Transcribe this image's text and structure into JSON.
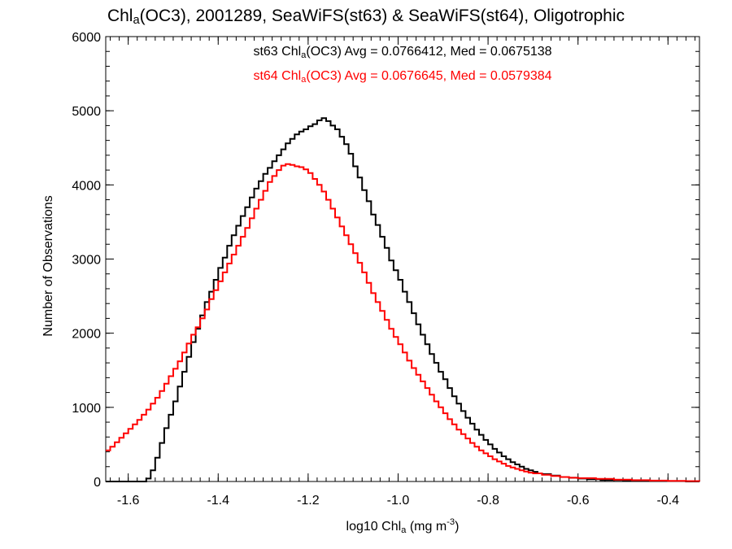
{
  "chart_data": {
    "type": "line",
    "title_parts": [
      "Chl",
      "a",
      "(OC3), 2001289, SeaWiFS(st63) & SeaWiFS(st64), Oligotrophic"
    ],
    "annotations": [
      {
        "series": "st63",
        "color": "#000000",
        "parts": [
          "st63 Chl",
          "a",
          "(OC3) Avg = 0.0766412, Med = 0.0675138"
        ]
      },
      {
        "series": "st64",
        "color": "#ff0000",
        "parts": [
          "st64 Chl",
          "a",
          "(OC3) Avg = 0.0676645, Med = 0.0579384"
        ]
      }
    ],
    "xlabel_parts": [
      "log10 Chl",
      "a",
      " (mg m",
      "-3",
      ")"
    ],
    "ylabel": "Number of Observations",
    "xlim": [
      -1.65,
      -0.33
    ],
    "ylim": [
      0,
      6000
    ],
    "xticks": [
      -1.6,
      -1.4,
      -1.2,
      -1.0,
      -0.8,
      -0.6,
      -0.4
    ],
    "xtick_labels": [
      "-1.6",
      "-1.4",
      "-1.2",
      "-1.0",
      "-0.8",
      "-0.6",
      "-0.4"
    ],
    "yticks": [
      0,
      1000,
      2000,
      3000,
      4000,
      5000,
      6000
    ],
    "ytick_labels": [
      "0",
      "1000",
      "2000",
      "3000",
      "4000",
      "5000",
      "6000"
    ],
    "step_style": "histogram",
    "series": [
      {
        "name": "st63",
        "color": "#000000",
        "points": [
          [
            -1.65,
            0
          ],
          [
            -1.58,
            0
          ],
          [
            -1.56,
            40
          ],
          [
            -1.55,
            150
          ],
          [
            -1.54,
            320
          ],
          [
            -1.53,
            520
          ],
          [
            -1.52,
            720
          ],
          [
            -1.51,
            900
          ],
          [
            -1.5,
            1080
          ],
          [
            -1.49,
            1280
          ],
          [
            -1.48,
            1480
          ],
          [
            -1.47,
            1680
          ],
          [
            -1.46,
            1880
          ],
          [
            -1.45,
            2060
          ],
          [
            -1.44,
            2240
          ],
          [
            -1.43,
            2420
          ],
          [
            -1.42,
            2560
          ],
          [
            -1.41,
            2720
          ],
          [
            -1.4,
            2880
          ],
          [
            -1.39,
            3020
          ],
          [
            -1.38,
            3180
          ],
          [
            -1.37,
            3320
          ],
          [
            -1.36,
            3450
          ],
          [
            -1.35,
            3580
          ],
          [
            -1.34,
            3700
          ],
          [
            -1.33,
            3830
          ],
          [
            -1.32,
            3950
          ],
          [
            -1.31,
            4050
          ],
          [
            -1.3,
            4150
          ],
          [
            -1.29,
            4230
          ],
          [
            -1.28,
            4320
          ],
          [
            -1.27,
            4400
          ],
          [
            -1.26,
            4480
          ],
          [
            -1.25,
            4560
          ],
          [
            -1.24,
            4620
          ],
          [
            -1.23,
            4680
          ],
          [
            -1.22,
            4720
          ],
          [
            -1.21,
            4750
          ],
          [
            -1.2,
            4790
          ],
          [
            -1.19,
            4820
          ],
          [
            -1.18,
            4870
          ],
          [
            -1.17,
            4900
          ],
          [
            -1.16,
            4860
          ],
          [
            -1.15,
            4800
          ],
          [
            -1.14,
            4750
          ],
          [
            -1.13,
            4650
          ],
          [
            -1.12,
            4550
          ],
          [
            -1.11,
            4420
          ],
          [
            -1.1,
            4250
          ],
          [
            -1.09,
            4100
          ],
          [
            -1.08,
            3930
          ],
          [
            -1.07,
            3780
          ],
          [
            -1.06,
            3600
          ],
          [
            -1.05,
            3460
          ],
          [
            -1.04,
            3300
          ],
          [
            -1.03,
            3150
          ],
          [
            -1.02,
            2980
          ],
          [
            -1.01,
            2850
          ],
          [
            -1.0,
            2720
          ],
          [
            -0.99,
            2560
          ],
          [
            -0.98,
            2420
          ],
          [
            -0.97,
            2270
          ],
          [
            -0.96,
            2120
          ],
          [
            -0.95,
            1980
          ],
          [
            -0.94,
            1850
          ],
          [
            -0.93,
            1720
          ],
          [
            -0.92,
            1600
          ],
          [
            -0.91,
            1480
          ],
          [
            -0.9,
            1380
          ],
          [
            -0.89,
            1260
          ],
          [
            -0.88,
            1150
          ],
          [
            -0.87,
            1050
          ],
          [
            -0.86,
            950
          ],
          [
            -0.85,
            860
          ],
          [
            -0.84,
            780
          ],
          [
            -0.83,
            700
          ],
          [
            -0.82,
            630
          ],
          [
            -0.81,
            560
          ],
          [
            -0.8,
            500
          ],
          [
            -0.79,
            440
          ],
          [
            -0.78,
            390
          ],
          [
            -0.77,
            340
          ],
          [
            -0.76,
            300
          ],
          [
            -0.75,
            260
          ],
          [
            -0.74,
            230
          ],
          [
            -0.73,
            200
          ],
          [
            -0.72,
            170
          ],
          [
            -0.71,
            150
          ],
          [
            -0.7,
            130
          ],
          [
            -0.69,
            110
          ],
          [
            -0.68,
            100
          ],
          [
            -0.66,
            80
          ],
          [
            -0.64,
            60
          ],
          [
            -0.62,
            50
          ],
          [
            -0.6,
            40
          ],
          [
            -0.58,
            30
          ],
          [
            -0.55,
            20
          ],
          [
            -0.5,
            15
          ],
          [
            -0.45,
            10
          ],
          [
            -0.4,
            5
          ],
          [
            -0.36,
            0
          ],
          [
            -0.33,
            0
          ]
        ]
      },
      {
        "name": "st64",
        "color": "#ff0000",
        "points": [
          [
            -1.65,
            420
          ],
          [
            -1.64,
            470
          ],
          [
            -1.63,
            530
          ],
          [
            -1.62,
            590
          ],
          [
            -1.61,
            650
          ],
          [
            -1.6,
            710
          ],
          [
            -1.59,
            770
          ],
          [
            -1.58,
            830
          ],
          [
            -1.57,
            900
          ],
          [
            -1.56,
            970
          ],
          [
            -1.55,
            1050
          ],
          [
            -1.54,
            1130
          ],
          [
            -1.53,
            1220
          ],
          [
            -1.52,
            1320
          ],
          [
            -1.51,
            1420
          ],
          [
            -1.5,
            1520
          ],
          [
            -1.49,
            1620
          ],
          [
            -1.48,
            1740
          ],
          [
            -1.47,
            1860
          ],
          [
            -1.46,
            1980
          ],
          [
            -1.45,
            2080
          ],
          [
            -1.44,
            2200
          ],
          [
            -1.43,
            2320
          ],
          [
            -1.42,
            2460
          ],
          [
            -1.41,
            2580
          ],
          [
            -1.4,
            2700
          ],
          [
            -1.39,
            2820
          ],
          [
            -1.38,
            2940
          ],
          [
            -1.37,
            3060
          ],
          [
            -1.36,
            3180
          ],
          [
            -1.35,
            3300
          ],
          [
            -1.34,
            3420
          ],
          [
            -1.33,
            3550
          ],
          [
            -1.32,
            3680
          ],
          [
            -1.31,
            3800
          ],
          [
            -1.3,
            3920
          ],
          [
            -1.29,
            4040
          ],
          [
            -1.28,
            4120
          ],
          [
            -1.27,
            4200
          ],
          [
            -1.26,
            4260
          ],
          [
            -1.25,
            4280
          ],
          [
            -1.24,
            4270
          ],
          [
            -1.23,
            4250
          ],
          [
            -1.22,
            4240
          ],
          [
            -1.21,
            4210
          ],
          [
            -1.2,
            4160
          ],
          [
            -1.19,
            4080
          ],
          [
            -1.18,
            4000
          ],
          [
            -1.17,
            3910
          ],
          [
            -1.16,
            3800
          ],
          [
            -1.15,
            3680
          ],
          [
            -1.14,
            3560
          ],
          [
            -1.13,
            3440
          ],
          [
            -1.12,
            3320
          ],
          [
            -1.11,
            3200
          ],
          [
            -1.1,
            3080
          ],
          [
            -1.09,
            2950
          ],
          [
            -1.08,
            2820
          ],
          [
            -1.07,
            2680
          ],
          [
            -1.06,
            2540
          ],
          [
            -1.05,
            2420
          ],
          [
            -1.04,
            2300
          ],
          [
            -1.03,
            2180
          ],
          [
            -1.02,
            2060
          ],
          [
            -1.01,
            1950
          ],
          [
            -1.0,
            1850
          ],
          [
            -0.99,
            1740
          ],
          [
            -0.98,
            1630
          ],
          [
            -0.97,
            1530
          ],
          [
            -0.96,
            1440
          ],
          [
            -0.95,
            1350
          ],
          [
            -0.94,
            1260
          ],
          [
            -0.93,
            1170
          ],
          [
            -0.92,
            1080
          ],
          [
            -0.91,
            1000
          ],
          [
            -0.9,
            920
          ],
          [
            -0.89,
            840
          ],
          [
            -0.88,
            770
          ],
          [
            -0.87,
            700
          ],
          [
            -0.86,
            640
          ],
          [
            -0.85,
            580
          ],
          [
            -0.84,
            520
          ],
          [
            -0.83,
            470
          ],
          [
            -0.82,
            420
          ],
          [
            -0.81,
            380
          ],
          [
            -0.8,
            340
          ],
          [
            -0.79,
            300
          ],
          [
            -0.78,
            270
          ],
          [
            -0.77,
            240
          ],
          [
            -0.76,
            210
          ],
          [
            -0.75,
            190
          ],
          [
            -0.74,
            170
          ],
          [
            -0.73,
            150
          ],
          [
            -0.72,
            135
          ],
          [
            -0.71,
            120
          ],
          [
            -0.7,
            110
          ],
          [
            -0.68,
            90
          ],
          [
            -0.66,
            75
          ],
          [
            -0.64,
            60
          ],
          [
            -0.62,
            50
          ],
          [
            -0.6,
            45
          ],
          [
            -0.56,
            35
          ],
          [
            -0.52,
            25
          ],
          [
            -0.48,
            18
          ],
          [
            -0.44,
            12
          ],
          [
            -0.4,
            8
          ],
          [
            -0.36,
            5
          ],
          [
            -0.33,
            3
          ]
        ]
      }
    ]
  }
}
